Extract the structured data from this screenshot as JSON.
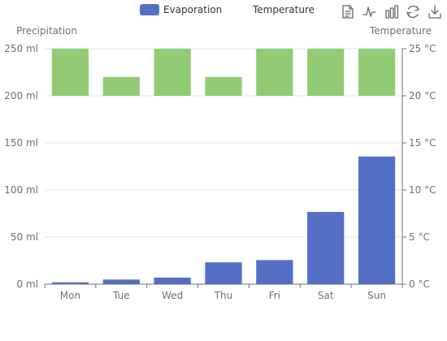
{
  "chart_data": {
    "type": "bar",
    "categories": [
      "Mon",
      "Tue",
      "Wed",
      "Thu",
      "Fri",
      "Sat",
      "Sun"
    ],
    "series": [
      {
        "name": "Evaporation",
        "axis": "left",
        "color": "#5470c6",
        "values": [
          2.0,
          4.9,
          7.0,
          23.2,
          25.6,
          76.7,
          135.6
        ]
      },
      {
        "name": "Temperature",
        "axis": "right",
        "color": "#91cc75",
        "values": [
          26,
          22,
          26,
          22,
          26,
          26,
          26
        ]
      }
    ],
    "left_axis": {
      "name": "Precipitation",
      "min": 0,
      "max": 250,
      "interval": 50,
      "tick_labels": [
        "0 ml",
        "50 ml",
        "100 ml",
        "150 ml",
        "200 ml",
        "250 ml"
      ]
    },
    "right_axis": {
      "name": "Temperature",
      "min": 0,
      "max": 25,
      "interval": 5,
      "tick_labels": [
        "0 °C",
        "5 °C",
        "10 °C",
        "15 °C",
        "20 °C",
        "25 °C"
      ]
    },
    "axis_break": {
      "from": 150,
      "to": 200
    },
    "legend": {
      "position": "top-center"
    },
    "grid": true
  },
  "toolbox": [
    "data-view-icon",
    "line-chart-icon",
    "bar-chart-icon",
    "restore-icon",
    "save-image-icon"
  ],
  "colors": {
    "axis": "#6e7079",
    "gridline": "#e0e6f1",
    "text": "#333333"
  }
}
